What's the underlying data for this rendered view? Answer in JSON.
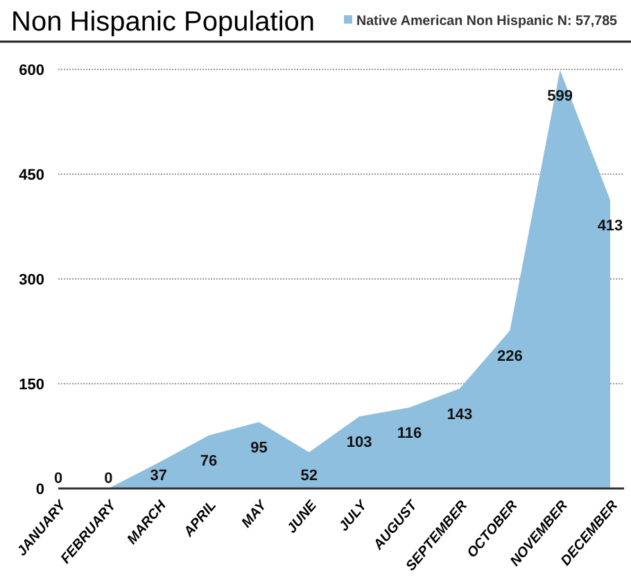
{
  "chart_data": {
    "type": "area",
    "title": "Non Hispanic Population",
    "categories": [
      "JANUARY",
      "FEBRUARY",
      "MARCH",
      "APRIL",
      "MAY",
      "JUNE",
      "JULY",
      "AUGUST",
      "SEPTEMBER",
      "OCTOBER",
      "NOVEMBER",
      "DECEMBER"
    ],
    "series": [
      {
        "name": "Native American Non Hispanic N: 57,785",
        "color": "#8fbfdf",
        "values": [
          0,
          0,
          37,
          76,
          95,
          52,
          103,
          116,
          143,
          226,
          599,
          413
        ]
      }
    ],
    "ylim": [
      0,
      600
    ],
    "yticks": [
      0,
      150,
      300,
      450,
      600
    ],
    "grid": "y",
    "legend": "top right",
    "data_labels": true
  }
}
